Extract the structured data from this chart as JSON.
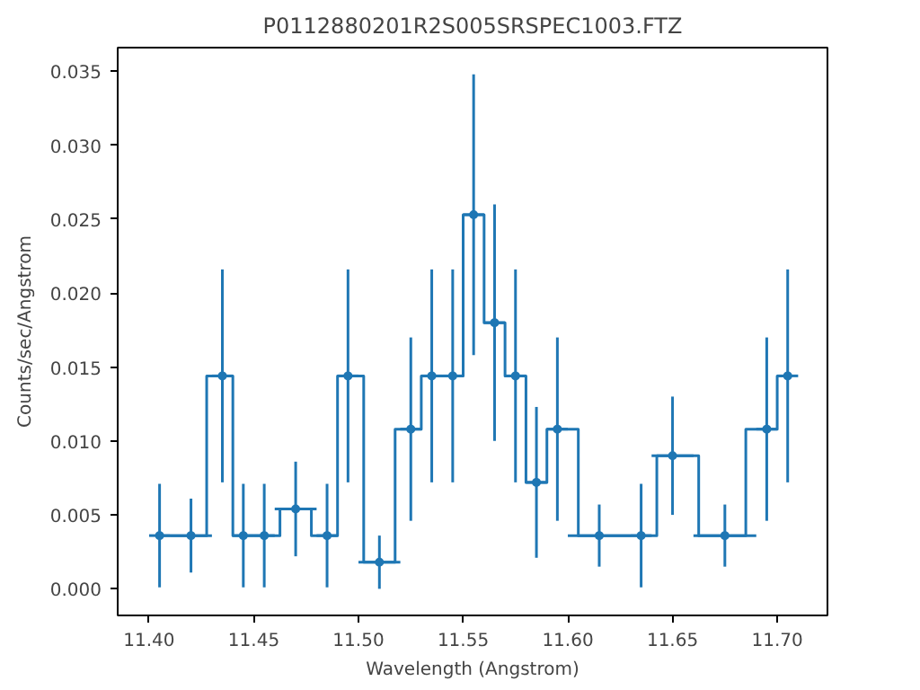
{
  "chart_data": {
    "type": "step",
    "title": "P0112880201R2S005SRSPEC1003.FTZ",
    "xlabel": "Wavelength (Angstrom)",
    "ylabel": "Counts/sec/Angstrom",
    "x": [
      11.405,
      11.42,
      11.435,
      11.445,
      11.455,
      11.47,
      11.485,
      11.495,
      11.51,
      11.525,
      11.535,
      11.545,
      11.555,
      11.565,
      11.575,
      11.585,
      11.595,
      11.615,
      11.635,
      11.65,
      11.675,
      11.695,
      11.705
    ],
    "series": [
      {
        "color": "#1f77b4",
        "values": [
          0.0036,
          0.0036,
          0.0144,
          0.0036,
          0.0036,
          0.0054,
          0.0036,
          0.0144,
          0.0018,
          0.0108,
          0.0144,
          0.0144,
          0.0253,
          0.018,
          0.0144,
          0.0072,
          0.0108,
          0.0036,
          0.0036,
          0.009,
          0.0036,
          0.0108,
          0.0144
        ],
        "errors": [
          0.0035,
          0.0025,
          0.0072,
          0.0035,
          0.0035,
          0.0032,
          0.0035,
          0.0072,
          0.0018,
          0.0062,
          0.0072,
          0.0072,
          0.0095,
          0.008,
          0.0072,
          0.0051,
          0.0062,
          0.0021,
          0.0035,
          0.004,
          0.0021,
          0.0062,
          0.0072
        ],
        "xerrors": [
          0.005,
          0.01,
          0.005,
          0.005,
          0.005,
          0.01,
          0.005,
          0.005,
          0.01,
          0.005,
          0.005,
          0.005,
          0.005,
          0.005,
          0.005,
          0.005,
          0.005,
          0.015,
          0.005,
          0.01,
          0.015,
          0.005,
          0.005
        ]
      }
    ],
    "marker": "circle",
    "line_style": "solid",
    "grid": false,
    "xlim": [
      11.385,
      11.724
    ],
    "ylim": [
      -0.0018,
      0.0366
    ],
    "xticks": [
      {
        "value": 11.4,
        "label": "11.40"
      },
      {
        "value": 11.45,
        "label": "11.45"
      },
      {
        "value": 11.5,
        "label": "11.50"
      },
      {
        "value": 11.55,
        "label": "11.55"
      },
      {
        "value": 11.6,
        "label": "11.60"
      },
      {
        "value": 11.65,
        "label": "11.65"
      },
      {
        "value": 11.7,
        "label": "11.70"
      }
    ],
    "yticks": [
      {
        "value": 0,
        "label": "0.000"
      },
      {
        "value": 0.005,
        "label": "0.005"
      },
      {
        "value": 0.01,
        "label": "0.010"
      },
      {
        "value": 0.015,
        "label": "0.015"
      },
      {
        "value": 0.02,
        "label": "0.020"
      },
      {
        "value": 0.025,
        "label": "0.025"
      },
      {
        "value": 0.03,
        "label": "0.030"
      },
      {
        "value": 0.035,
        "label": "0.035"
      }
    ]
  }
}
